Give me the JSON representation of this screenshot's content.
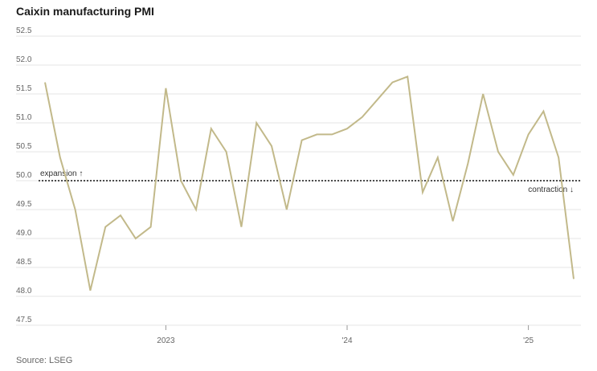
{
  "chart_data": {
    "type": "line",
    "title": "Caixin manufacturing PMI",
    "source": "Source: LSEG",
    "ylim": [
      47.5,
      52.5
    ],
    "y_ticks": [
      "52.5",
      "52.0",
      "51.5",
      "51.0",
      "50.5",
      "50.0",
      "49.5",
      "49.0",
      "48.5",
      "48.0",
      "47.5"
    ],
    "x_tick_labels": [
      {
        "label": "2023",
        "date": "2023-01"
      },
      {
        "label": "'24",
        "date": "2024-01"
      },
      {
        "label": "'25",
        "date": "2025-01"
      }
    ],
    "x_range": [
      "2022-05",
      "2025-04"
    ],
    "reference_line": 50.0,
    "annotations": {
      "expansion": "expansion",
      "contraction": "contraction"
    },
    "line_color": "#c2b98a",
    "grid": true,
    "series": [
      {
        "x": [
          "2022-05",
          "2022-06",
          "2022-07",
          "2022-08",
          "2022-09",
          "2022-10",
          "2022-11",
          "2022-12",
          "2023-01",
          "2023-02",
          "2023-03",
          "2023-04",
          "2023-05",
          "2023-06",
          "2023-07",
          "2023-08",
          "2023-09",
          "2023-10",
          "2023-11",
          "2023-12",
          "2024-01",
          "2024-02",
          "2024-03",
          "2024-04",
          "2024-05",
          "2024-06",
          "2024-07",
          "2024-08",
          "2024-09",
          "2024-10",
          "2024-11",
          "2024-12",
          "2025-01",
          "2025-02",
          "2025-03",
          "2025-04"
        ],
        "values": [
          51.7,
          50.4,
          49.5,
          48.1,
          49.2,
          49.4,
          49.0,
          49.2,
          51.6,
          50.0,
          49.5,
          50.9,
          50.5,
          49.2,
          51.0,
          50.6,
          49.5,
          50.7,
          50.8,
          50.8,
          50.9,
          51.1,
          51.4,
          51.7,
          51.8,
          49.8,
          50.4,
          49.3,
          50.3,
          51.5,
          50.5,
          50.1,
          50.8,
          51.2,
          50.4,
          48.3
        ]
      }
    ]
  }
}
